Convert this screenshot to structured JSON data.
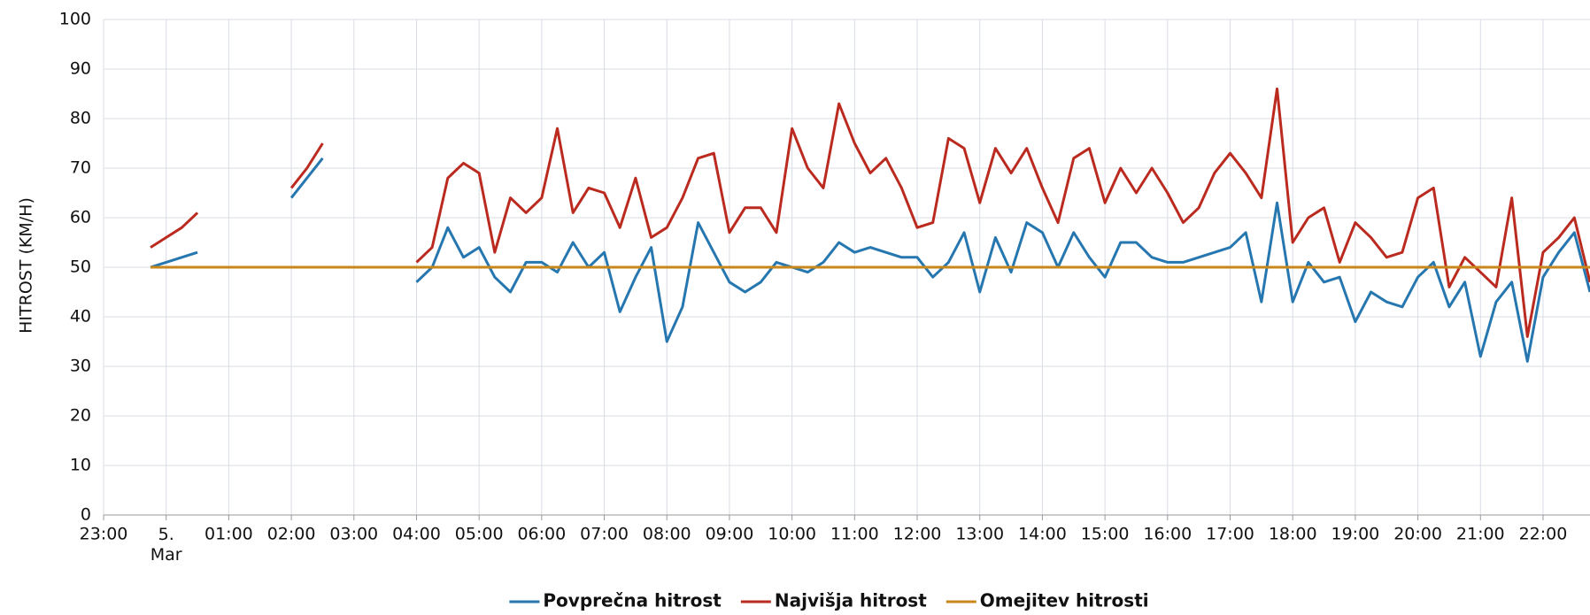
{
  "chart_data": {
    "type": "line",
    "y_label": "HITROST (KM/H)",
    "x": [
      -0.25,
      0,
      0.25,
      0.5,
      0.75,
      1,
      1.25,
      1.5,
      1.75,
      2,
      2.25,
      2.5,
      2.75,
      3,
      3.25,
      3.5,
      3.75,
      4,
      4.25,
      4.5,
      4.75,
      5,
      5.25,
      5.5,
      5.75,
      6,
      6.25,
      6.5,
      6.75,
      7,
      7.25,
      7.5,
      7.75,
      8,
      8.25,
      8.5,
      8.75,
      9,
      9.25,
      9.5,
      9.75,
      10,
      10.25,
      10.5,
      10.75,
      11,
      11.25,
      11.5,
      11.75,
      12,
      12.25,
      12.5,
      12.75,
      13,
      13.25,
      13.5,
      13.75,
      14,
      14.25,
      14.5,
      14.75,
      15,
      15.25,
      15.5,
      15.75,
      16,
      16.25,
      16.5,
      16.75,
      17,
      17.25,
      17.5,
      17.75,
      18,
      18.25,
      18.5,
      18.75,
      19,
      19.25,
      19.5,
      19.75,
      20,
      20.25,
      20.5,
      20.75,
      21,
      21.25,
      21.5,
      21.75,
      22,
      22.25,
      22.5,
      22.75
    ],
    "series": [
      {
        "name": "Povprečna hitrost",
        "color": "#2677b0",
        "values": [
          50,
          51,
          52,
          53,
          null,
          null,
          null,
          null,
          null,
          64,
          68,
          72,
          null,
          null,
          null,
          null,
          null,
          47,
          50,
          58,
          52,
          54,
          48,
          45,
          51,
          51,
          49,
          55,
          50,
          53,
          41,
          48,
          54,
          35,
          42,
          59,
          53,
          47,
          45,
          47,
          51,
          50,
          49,
          51,
          55,
          53,
          54,
          53,
          52,
          52,
          48,
          51,
          57,
          45,
          56,
          49,
          59,
          57,
          50,
          57,
          52,
          48,
          55,
          55,
          52,
          51,
          51,
          52,
          53,
          54,
          57,
          43,
          63,
          43,
          51,
          47,
          48,
          39,
          45,
          43,
          42,
          48,
          51,
          42,
          47,
          32,
          43,
          47,
          31,
          48,
          53,
          57,
          45
        ]
      },
      {
        "name": "Najvišja hitrost",
        "color": "#bb2a1f",
        "values": [
          54,
          56,
          58,
          61,
          null,
          null,
          null,
          null,
          null,
          66,
          70,
          75,
          null,
          null,
          null,
          null,
          null,
          51,
          54,
          68,
          71,
          69,
          53,
          64,
          61,
          64,
          78,
          61,
          66,
          65,
          58,
          68,
          56,
          58,
          64,
          72,
          73,
          57,
          62,
          62,
          57,
          78,
          70,
          66,
          83,
          75,
          69,
          72,
          66,
          58,
          59,
          76,
          74,
          63,
          74,
          69,
          74,
          66,
          59,
          72,
          74,
          63,
          70,
          65,
          70,
          65,
          59,
          62,
          69,
          73,
          69,
          64,
          86,
          55,
          60,
          62,
          51,
          59,
          56,
          52,
          53,
          64,
          66,
          46,
          52,
          49,
          46,
          64,
          36,
          53,
          56,
          60,
          47
        ]
      },
      {
        "name": "Omejitev hitrosti",
        "color": "#c8871a",
        "values": [
          50,
          50,
          50,
          50,
          50,
          50,
          50,
          50,
          50,
          50,
          50,
          50,
          50,
          50,
          50,
          50,
          50,
          50,
          50,
          50,
          50,
          50,
          50,
          50,
          50,
          50,
          50,
          50,
          50,
          50,
          50,
          50,
          50,
          50,
          50,
          50,
          50,
          50,
          50,
          50,
          50,
          50,
          50,
          50,
          50,
          50,
          50,
          50,
          50,
          50,
          50,
          50,
          50,
          50,
          50,
          50,
          50,
          50,
          50,
          50,
          50,
          50,
          50,
          50,
          50,
          50,
          50,
          50,
          50,
          50,
          50,
          50,
          50,
          50,
          50,
          50,
          50,
          50,
          50,
          50,
          50,
          50,
          50,
          50,
          50,
          50,
          50,
          50,
          50,
          50,
          50,
          50,
          50
        ]
      }
    ],
    "xlim": [
      -1,
      22.75
    ],
    "xticks": [
      {
        "value": -1,
        "label": "23:00"
      },
      {
        "value": 0,
        "label": "5. Mar"
      },
      {
        "value": 1,
        "label": "01:00"
      },
      {
        "value": 2,
        "label": "02:00"
      },
      {
        "value": 3,
        "label": "03:00"
      },
      {
        "value": 4,
        "label": "04:00"
      },
      {
        "value": 5,
        "label": "05:00"
      },
      {
        "value": 6,
        "label": "06:00"
      },
      {
        "value": 7,
        "label": "07:00"
      },
      {
        "value": 8,
        "label": "08:00"
      },
      {
        "value": 9,
        "label": "09:00"
      },
      {
        "value": 10,
        "label": "10:00"
      },
      {
        "value": 11,
        "label": "11:00"
      },
      {
        "value": 12,
        "label": "12:00"
      },
      {
        "value": 13,
        "label": "13:00"
      },
      {
        "value": 14,
        "label": "14:00"
      },
      {
        "value": 15,
        "label": "15:00"
      },
      {
        "value": 16,
        "label": "16:00"
      },
      {
        "value": 17,
        "label": "17:00"
      },
      {
        "value": 18,
        "label": "18:00"
      },
      {
        "value": 19,
        "label": "19:00"
      },
      {
        "value": 20,
        "label": "20:00"
      },
      {
        "value": 21,
        "label": "21:00"
      },
      {
        "value": 22,
        "label": "22:00"
      }
    ],
    "ylim": [
      0,
      100
    ],
    "yticks": [
      0,
      10,
      20,
      30,
      40,
      50,
      60,
      70,
      80,
      90,
      100
    ],
    "grid": true,
    "legend": "bottom"
  }
}
